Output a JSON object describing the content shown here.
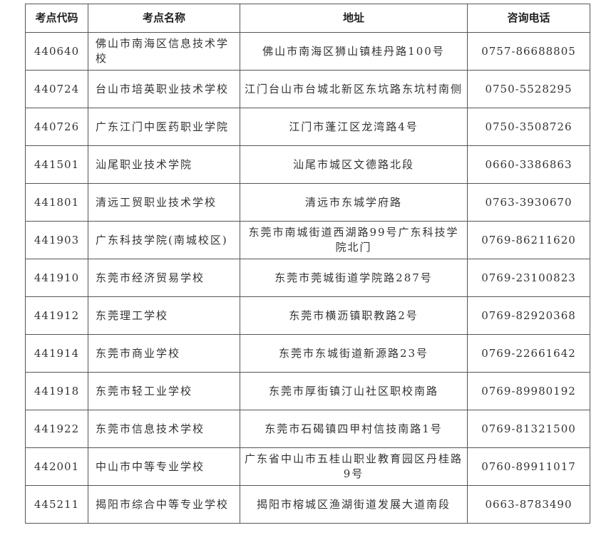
{
  "table": {
    "headers": [
      "考点代码",
      "考点名称",
      "地址",
      "咨询电话"
    ],
    "rows": [
      {
        "code": "440640",
        "name": "佛山市南海区信息技术学校",
        "address": "佛山市南海区狮山镇桂丹路100号",
        "phone": "0757-86688805"
      },
      {
        "code": "440724",
        "name": "台山市培英职业技术学校",
        "address": "江门台山市台城北新区东坑路东坑村南侧",
        "phone": "0750-5528295"
      },
      {
        "code": "440726",
        "name": "广东江门中医药职业学院",
        "address": "江门市蓬江区龙湾路4号",
        "phone": "0750-3508726"
      },
      {
        "code": "441501",
        "name": "汕尾职业技术学院",
        "address": "汕尾市城区文德路北段",
        "phone": "0660-3386863"
      },
      {
        "code": "441801",
        "name": "清远工贸职业技术学校",
        "address": "清远市东城学府路",
        "phone": "0763-3930670"
      },
      {
        "code": "441903",
        "name": "广东科技学院(南城校区)",
        "address": "东莞市南城街道西湖路99号广东科技学院北门",
        "phone": "0769-86211620"
      },
      {
        "code": "441910",
        "name": "东莞市经济贸易学校",
        "address": "东莞市莞城街道学院路287号",
        "phone": "0769-23100823"
      },
      {
        "code": "441912",
        "name": "东莞理工学校",
        "address": "东莞市横沥镇职教路2号",
        "phone": "0769-82920368"
      },
      {
        "code": "441914",
        "name": "东莞市商业学校",
        "address": "东莞市东城街道新源路23号",
        "phone": "0769-22661642"
      },
      {
        "code": "441918",
        "name": "东莞市轻工业学校",
        "address": "东莞市厚街镇汀山社区职校南路",
        "phone": "0769-89980192"
      },
      {
        "code": "441922",
        "name": "东莞市信息技术学校",
        "address": "东莞市石碣镇四甲村信技南路1号",
        "phone": "0769-81321500"
      },
      {
        "code": "442001",
        "name": "中山市中等专业学校",
        "address": "广东省中山市五桂山职业教育园区丹桂路9号",
        "phone": "0760-89911017"
      },
      {
        "code": "445211",
        "name": "揭阳市综合中等专业学校",
        "address": "揭阳市榕城区渔湖街道发展大道南段",
        "phone": "0663-8783490"
      }
    ]
  }
}
